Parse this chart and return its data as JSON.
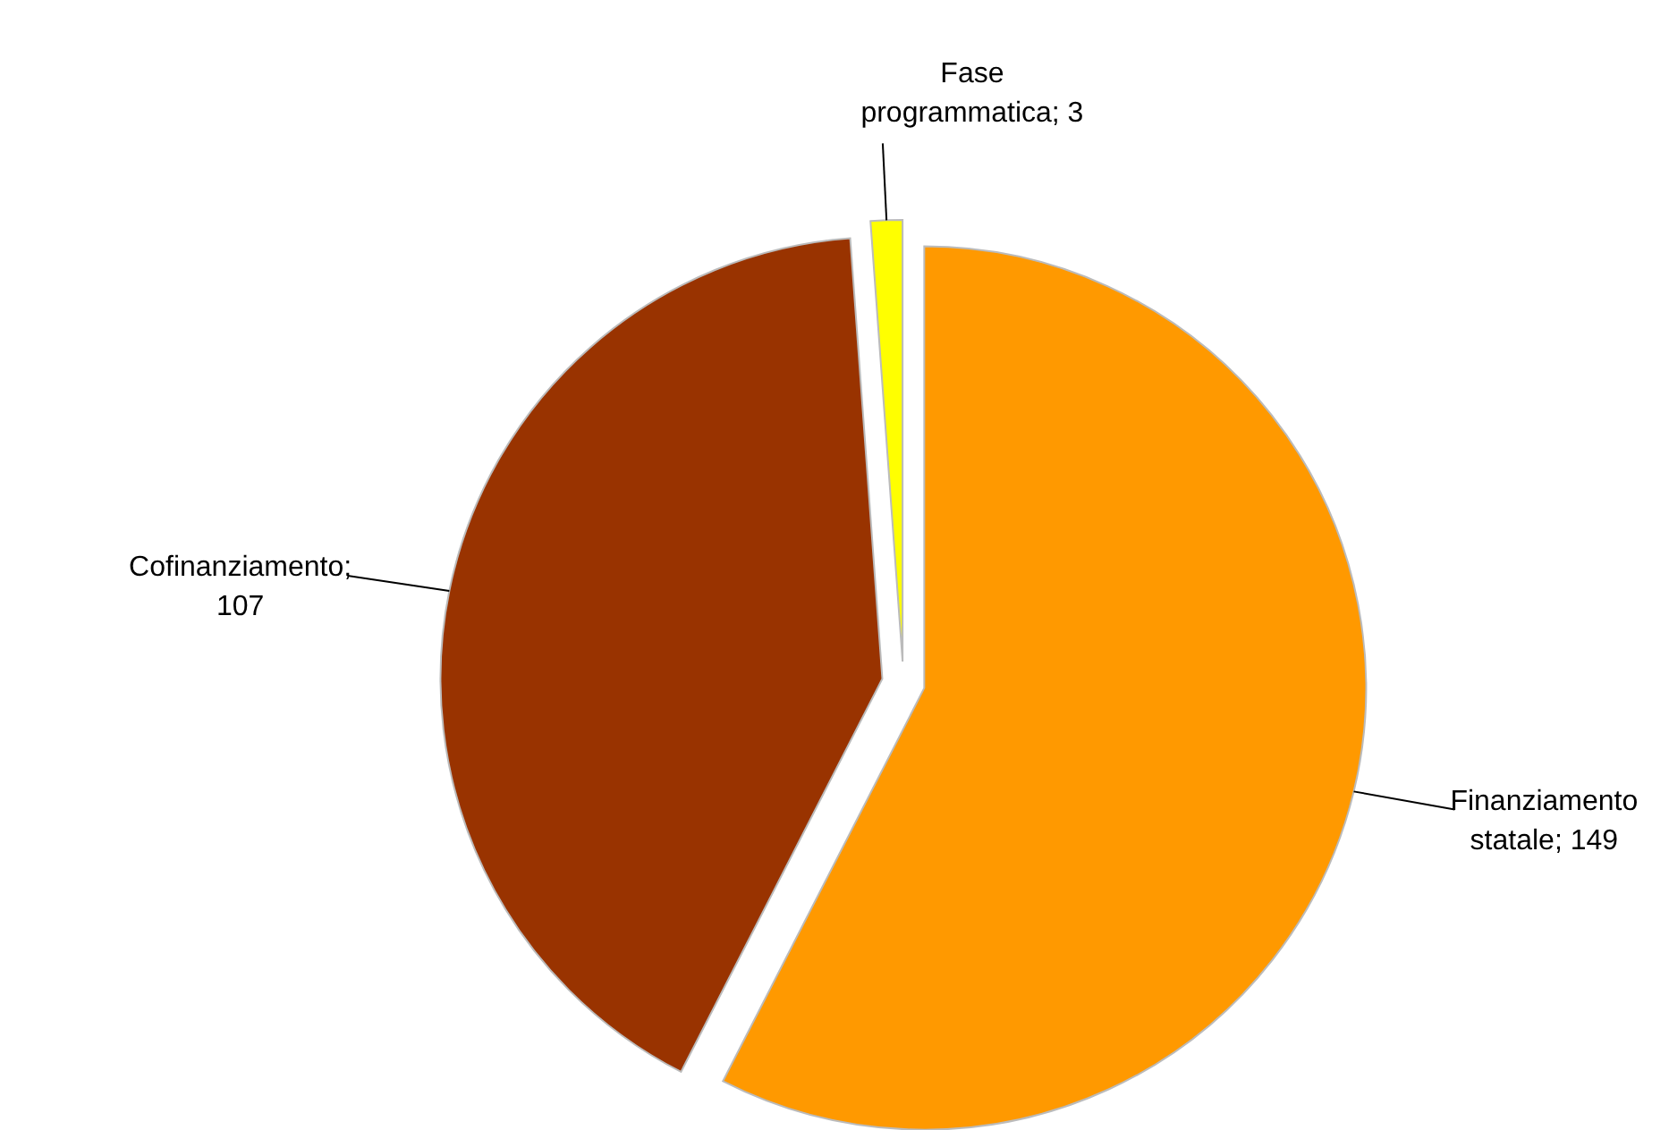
{
  "chart_data": {
    "type": "pie",
    "categories": [
      "Finanziamento statale",
      "Cofinanziamento",
      "Fase programmatica"
    ],
    "values": [
      149,
      107,
      3
    ],
    "colors": [
      "#ff9900",
      "#993300",
      "#ffff00"
    ],
    "value_labels": [
      "; 149",
      "; 107",
      "; 3"
    ]
  }
}
